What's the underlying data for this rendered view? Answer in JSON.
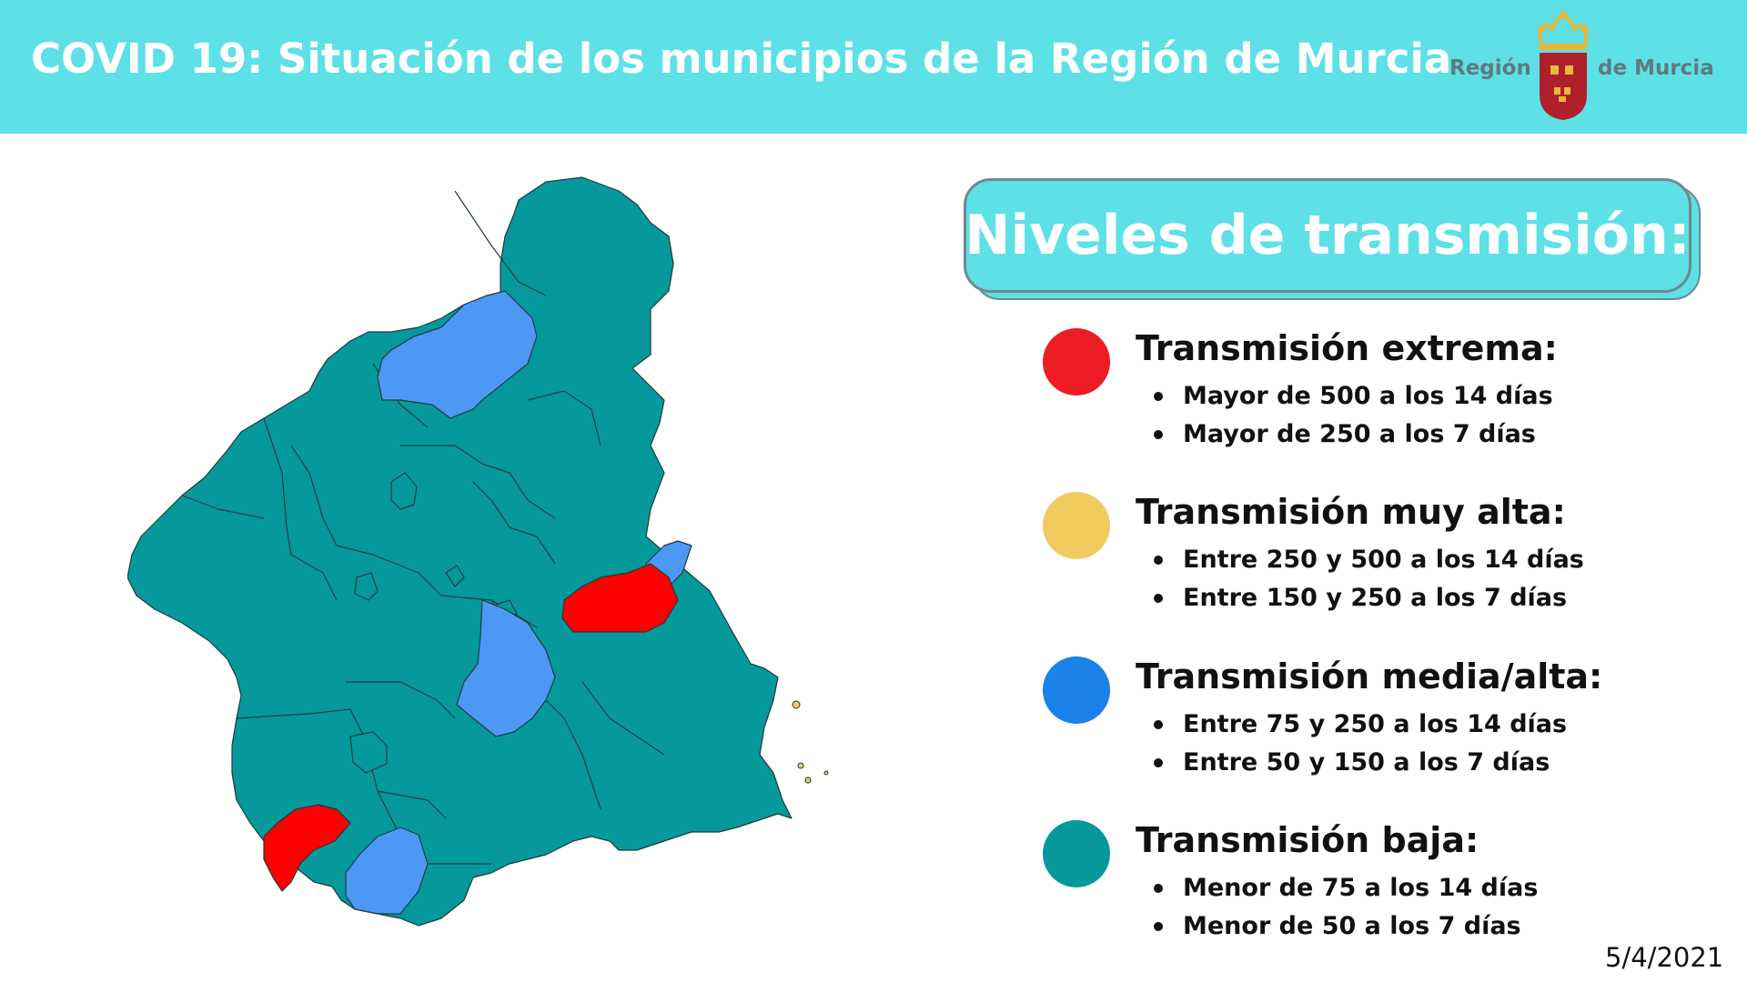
{
  "header": {
    "title": "COVID 19: Situación de los municipios de la Región de Murcia",
    "background": "#5de0e6"
  },
  "logo": {
    "left_text": "Región",
    "right_text": "de Murcia",
    "icon": "coat-of-arms-icon"
  },
  "legend": {
    "title": "Niveles de transmisión:",
    "levels": [
      {
        "label": "Transmisión extrema:",
        "color": "#ee1c25",
        "lines": [
          "Mayor de 500 a los 14 días",
          "Mayor de 250 a los 7 días"
        ]
      },
      {
        "label": "Transmisión muy alta:",
        "color": "#f0cb5e",
        "lines": [
          "Entre 250 y 500 a los 14 días",
          "Entre 150 y 250 a los 7 días"
        ]
      },
      {
        "label": "Transmisión media/alta:",
        "color": "#1a82e8",
        "lines": [
          "Entre 75 y 250 a los 14 días",
          "Entre 50 y 150 a los 7 días"
        ]
      },
      {
        "label": "Transmisión baja:",
        "color": "#05999c",
        "lines": [
          "Menor de 75 a los 14 días",
          "Menor de 50 a los 7 días"
        ]
      }
    ]
  },
  "map": {
    "colors": {
      "baja": "#05999c",
      "media_alta": "#4d98f4",
      "extrema": "#ff0000",
      "outline": "#1e3b3c"
    }
  },
  "date": "5/4/2021"
}
